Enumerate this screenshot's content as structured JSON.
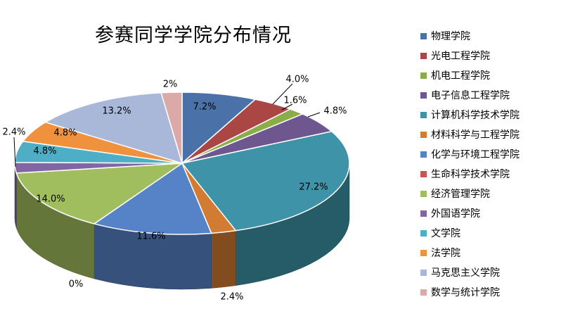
{
  "chart_data": {
    "type": "pie",
    "title": "参赛同学学院分布情况",
    "slices": [
      {
        "label": "物理学院",
        "value": 7.2,
        "value_label": "7.2%",
        "color": "#4A72A8"
      },
      {
        "label": "光电工程学院",
        "value": 4.0,
        "value_label": "4.0%",
        "color": "#AA4744"
      },
      {
        "label": "机电工程学院",
        "value": 1.6,
        "value_label": "1.6%",
        "color": "#8AAD4A"
      },
      {
        "label": "电子信息工程学院",
        "value": 4.8,
        "value_label": "4.8%",
        "color": "#6E568F"
      },
      {
        "label": "计算机科学技术学院",
        "value": 27.2,
        "value_label": "27.2%",
        "color": "#3E93A8"
      },
      {
        "label": "材料科学与工程学院",
        "value": 2.4,
        "value_label": "2.4%",
        "color": "#D27B32"
      },
      {
        "label": "化学与环境工程学院",
        "value": 11.6,
        "value_label": "11.6%",
        "color": "#5682C8"
      },
      {
        "label": "生命科学技术学院",
        "value": 0,
        "value_label": "0%",
        "color": "#C45654"
      },
      {
        "label": "经济管理学院",
        "value": 14.0,
        "value_label": "14.0%",
        "color": "#A1BE5E"
      },
      {
        "label": "外国语学院",
        "value": 2.4,
        "value_label": "2.4%",
        "color": "#8266A4"
      },
      {
        "label": "文学院",
        "value": 4.8,
        "value_label": "4.8%",
        "color": "#4DAEC6"
      },
      {
        "label": "法学院",
        "value": 4.8,
        "value_label": "4.8%",
        "color": "#F0913E"
      },
      {
        "label": "马克思主义学院",
        "value": 13.2,
        "value_label": "13.2%",
        "color": "#A9B8D8"
      },
      {
        "label": "数学与统计学院",
        "value": 2,
        "value_label": "2%",
        "color": "#DBA9A8"
      }
    ],
    "legend_position": "right",
    "style": "3d-tilted"
  }
}
